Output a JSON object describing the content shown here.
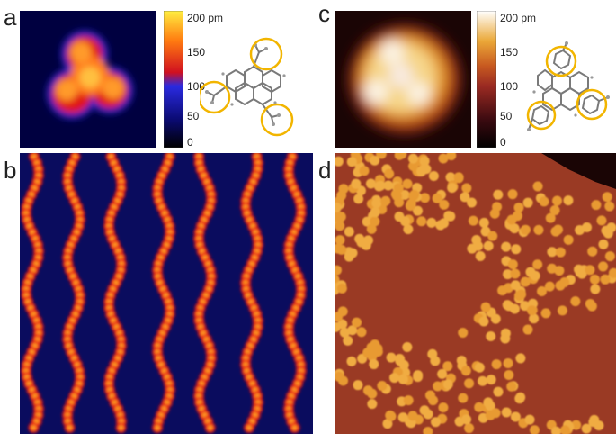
{
  "panels": {
    "a": {
      "letter": "a"
    },
    "b": {
      "letter": "b"
    },
    "c": {
      "letter": "c"
    },
    "d": {
      "letter": "d"
    }
  },
  "scalebar_left": {
    "colormap": "hot-blue",
    "ticks": [
      "200 pm",
      "150",
      "100",
      "50",
      "0"
    ]
  },
  "scalebar_right": {
    "colormap": "dark-copper",
    "ticks": [
      "200 pm",
      "150",
      "100",
      "50",
      "0"
    ]
  },
  "colors": {
    "highlight_ring": "#f2b500",
    "molecule_bond": "#7a7a7a",
    "background_b": "#0a0c5e",
    "background_d": "#9a3a24"
  }
}
